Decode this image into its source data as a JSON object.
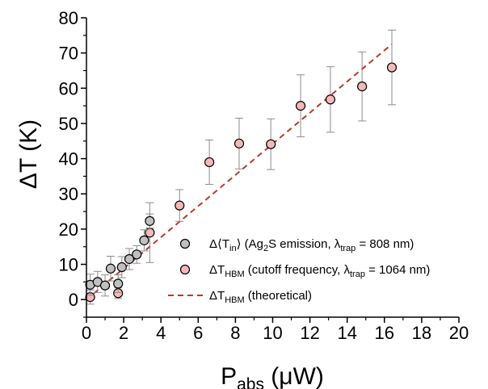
{
  "chart_data": {
    "type": "scatter",
    "xlabel": "P",
    "xlabel_sub": "abs",
    "xlabel_unit": " (μW)",
    "ylabel": "ΔT (K)",
    "xlim": [
      0,
      20
    ],
    "ylim": [
      -5,
      80
    ],
    "x_ticks": [
      0,
      2,
      4,
      6,
      8,
      10,
      12,
      14,
      16,
      18,
      20
    ],
    "y_ticks": [
      0,
      10,
      20,
      30,
      40,
      50,
      60,
      70,
      80
    ],
    "grid": false,
    "legend_position": "bottom-right",
    "series": [
      {
        "name": "Δ⟨Tin⟩ (Ag2S emission, λtrap = 808 nm)",
        "legend_parts": [
          {
            "t": "Δ⟨T"
          },
          {
            "t": "in",
            "s": "sub"
          },
          {
            "t": "⟩ (Ag"
          },
          {
            "t": "2",
            "s": "sub"
          },
          {
            "t": "S emission, λ"
          },
          {
            "t": "trap",
            "s": "sub"
          },
          {
            "t": " = 808 nm)"
          }
        ],
        "marker": "circle",
        "color": "#c0c0c0",
        "points": [
          {
            "x": 0.2,
            "y": 4.2,
            "err": 3.0
          },
          {
            "x": 0.6,
            "y": 5.0,
            "err": 3.0
          },
          {
            "x": 1.0,
            "y": 4.0,
            "err": 3.0
          },
          {
            "x": 1.3,
            "y": 8.8,
            "err": 3.5
          },
          {
            "x": 1.7,
            "y": 4.5,
            "err": 2.5
          },
          {
            "x": 1.9,
            "y": 9.2,
            "err": 3.0
          },
          {
            "x": 2.3,
            "y": 11.5,
            "err": 3.0
          },
          {
            "x": 2.7,
            "y": 12.8,
            "err": 2.5
          },
          {
            "x": 3.1,
            "y": 16.8,
            "err": 3.0
          },
          {
            "x": 3.4,
            "y": 22.3,
            "err": 2.0
          }
        ]
      },
      {
        "name": "ΔTHBM (cutoff frequency, λtrap = 1064 nm)",
        "legend_parts": [
          {
            "t": "ΔT"
          },
          {
            "t": "HBM",
            "s": "sub"
          },
          {
            "t": " (cutoff frequency, λ"
          },
          {
            "t": "trap",
            "s": "sub"
          },
          {
            "t": " = 1064 nm)"
          }
        ],
        "marker": "circle",
        "color": "#f4b8b8",
        "points": [
          {
            "x": 0.2,
            "y": 0.7,
            "err": 2.0
          },
          {
            "x": 1.7,
            "y": 1.8,
            "err": 1.5
          },
          {
            "x": 3.4,
            "y": 19.0,
            "err": 8.5
          },
          {
            "x": 5.0,
            "y": 26.7,
            "err": 4.5
          },
          {
            "x": 6.6,
            "y": 39.0,
            "err": 6.3
          },
          {
            "x": 8.2,
            "y": 44.3,
            "err": 7.2
          },
          {
            "x": 9.9,
            "y": 44.1,
            "err": 7.2
          },
          {
            "x": 11.5,
            "y": 55.0,
            "err": 8.8
          },
          {
            "x": 13.1,
            "y": 56.8,
            "err": 9.3
          },
          {
            "x": 14.8,
            "y": 60.5,
            "err": 9.8
          },
          {
            "x": 16.4,
            "y": 65.9,
            "err": 10.6
          }
        ]
      },
      {
        "name": "ΔTHBM (theoretical)",
        "legend_parts": [
          {
            "t": "ΔT"
          },
          {
            "t": "HBM",
            "s": "sub"
          },
          {
            "t": " (theoretical)"
          }
        ],
        "marker": "dashed-line",
        "color": "#b83a2a",
        "line": [
          {
            "x": 0.0,
            "y": 0.0
          },
          {
            "x": 16.4,
            "y": 72.5
          }
        ]
      }
    ]
  }
}
